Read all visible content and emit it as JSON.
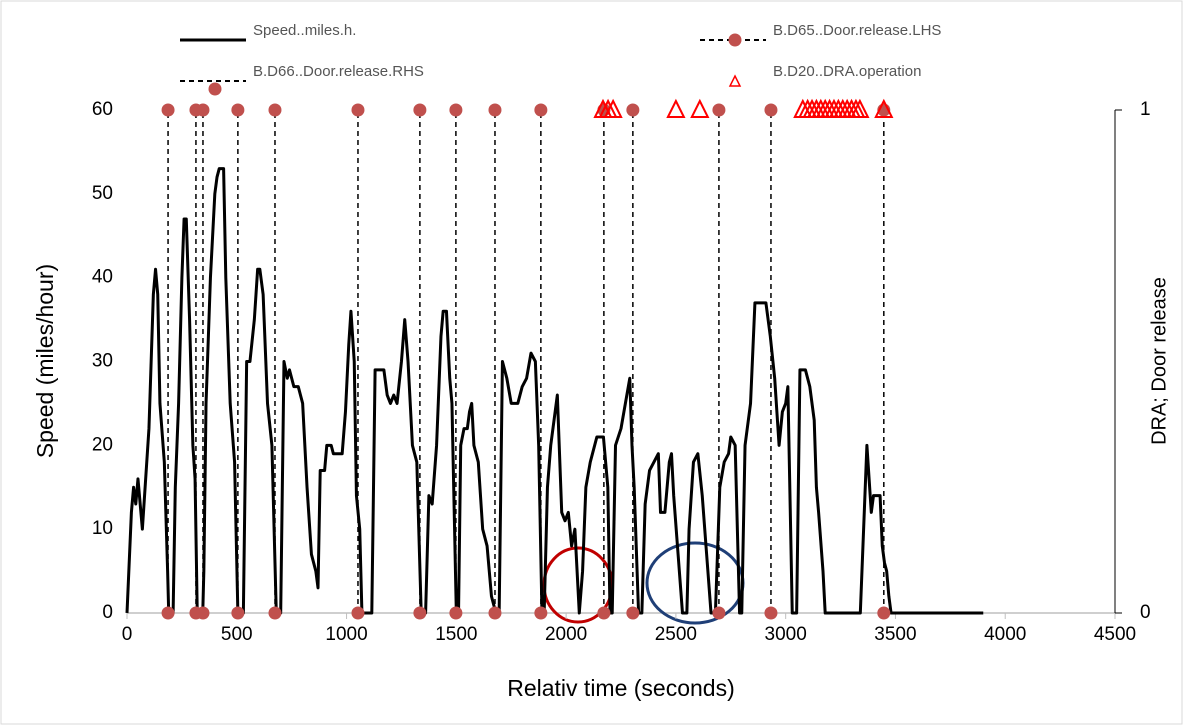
{
  "chart_data": {
    "type": "line",
    "xlabel": "Relativ time (seconds)",
    "ylabel": "Speed (miles/hour)",
    "y2label": "DRA; Door release",
    "xlim": [
      0,
      4500
    ],
    "xticks": [
      0,
      500,
      1000,
      1500,
      2000,
      2500,
      3000,
      3500,
      4000,
      4500
    ],
    "ylim": [
      0,
      60
    ],
    "yticks": [
      0,
      10,
      20,
      30,
      40,
      50,
      60
    ],
    "y2lim": [
      0,
      1
    ],
    "y2ticks": [
      0,
      1
    ],
    "grid": false,
    "series": [
      {
        "name": "Speed..miles.h.",
        "type": "line",
        "color": "#000000",
        "marker": "none",
        "dash": false,
        "x": [
          0,
          20,
          30,
          40,
          50,
          60,
          70,
          80,
          100,
          120,
          130,
          140,
          150,
          170,
          185,
          190,
          210,
          220,
          235,
          250,
          260,
          270,
          285,
          300,
          310,
          320,
          335,
          345,
          350,
          360,
          380,
          400,
          410,
          420,
          440,
          450,
          470,
          490,
          505,
          530,
          545,
          560,
          580,
          595,
          605,
          620,
          640,
          660,
          680,
          700,
          715,
          730,
          740,
          760,
          780,
          800,
          820,
          840,
          860,
          870,
          880,
          900,
          910,
          930,
          940,
          980,
          995,
          1010,
          1020,
          1035,
          1045,
          1060,
          1070,
          1115,
          1130,
          1170,
          1185,
          1200,
          1215,
          1230,
          1250,
          1265,
          1280,
          1300,
          1320,
          1340,
          1360,
          1375,
          1390,
          1410,
          1430,
          1440,
          1455,
          1470,
          1480,
          1500,
          1510,
          1520,
          1535,
          1550,
          1560,
          1570,
          1580,
          1600,
          1620,
          1640,
          1660,
          1680,
          1695,
          1710,
          1730,
          1750,
          1780,
          1800,
          1820,
          1840,
          1860,
          1875,
          1890,
          1900,
          1915,
          1930,
          1950,
          1960,
          1980,
          1995,
          2010,
          2025,
          2040,
          2060,
          2075,
          2090,
          2110,
          2140,
          2170,
          2190,
          2200,
          2210,
          2225,
          2250,
          2270,
          2290,
          2300,
          2310,
          2330,
          2345,
          2360,
          2380,
          2400,
          2420,
          2430,
          2450,
          2470,
          2480,
          2490,
          2510,
          2530,
          2550,
          2560,
          2580,
          2600,
          2620,
          2640,
          2660,
          2680,
          2700,
          2720,
          2740,
          2750,
          2770,
          2790,
          2800,
          2815,
          2840,
          2860,
          2910,
          2930,
          2950,
          2970,
          2985,
          3000,
          3010,
          3030,
          3050,
          3065,
          3090,
          3110,
          3130,
          3140,
          3150,
          3170,
          3180,
          3240,
          3320,
          3340,
          3355,
          3370,
          3380,
          3390,
          3400,
          3430,
          3440,
          3450,
          3460,
          3470,
          3480,
          3900
        ],
        "values": [
          0,
          12,
          15,
          13,
          16,
          13,
          10,
          14,
          22,
          38,
          41,
          38,
          25,
          18,
          5,
          0,
          0,
          15,
          25,
          40,
          47,
          47,
          35,
          20,
          16,
          0,
          0,
          0,
          5,
          25,
          40,
          50,
          52,
          53,
          53,
          40,
          25,
          18,
          0,
          0,
          30,
          30,
          35,
          41,
          41,
          38,
          25,
          20,
          0,
          0,
          30,
          28,
          29,
          27,
          27,
          25,
          15,
          7,
          5,
          3,
          17,
          17,
          20,
          20,
          19,
          19,
          24,
          32,
          36,
          30,
          14,
          10,
          0,
          0,
          29,
          29,
          26,
          25,
          26,
          25,
          30,
          35,
          30,
          20,
          18,
          0,
          0,
          14,
          13,
          20,
          33,
          36,
          36,
          28,
          25,
          0,
          0,
          20,
          22,
          22,
          24,
          25,
          20,
          18,
          10,
          8,
          2,
          0,
          0,
          30,
          28,
          25,
          25,
          27,
          28,
          31,
          30,
          20,
          0,
          0,
          15,
          20,
          24,
          26,
          12,
          11,
          12,
          8,
          10,
          0,
          5,
          15,
          18,
          21,
          21,
          15,
          0,
          0,
          20,
          22,
          25,
          28,
          20,
          15,
          0,
          0,
          13,
          17,
          18,
          19,
          12,
          12,
          18,
          19,
          14,
          7,
          0,
          0,
          10,
          18,
          19,
          14,
          7,
          0,
          0,
          15,
          18,
          19,
          21,
          20,
          0,
          0,
          20,
          25,
          37,
          37,
          33,
          28,
          20,
          24,
          25,
          27,
          0,
          0,
          29,
          29,
          27,
          23,
          15,
          12,
          5,
          0,
          0,
          0,
          0,
          10,
          20,
          16,
          12,
          14,
          14,
          8,
          6,
          5,
          2,
          0,
          0
        ]
      },
      {
        "name": "B.D65..Door.release.LHS",
        "type": "line",
        "axis": "y2",
        "color": "#c0504d",
        "marker": "circle",
        "dash": true,
        "x": [
          187,
          187,
          187,
          314,
          314,
          314,
          346,
          346,
          346,
          505,
          505,
          505,
          674,
          674,
          674,
          1052,
          1052,
          1052,
          1334,
          1334,
          1334,
          1498,
          1498,
          1498,
          1676,
          1676,
          1676,
          1885,
          1885,
          1885,
          2172,
          2172,
          2172,
          2304,
          2304,
          2304,
          2696,
          2696,
          2696,
          2933,
          2933,
          2933,
          3447,
          3447,
          3447
        ],
        "values": [
          0,
          1,
          null,
          0,
          1,
          null,
          0,
          1,
          null,
          0,
          1,
          null,
          0,
          1,
          null,
          0,
          1,
          null,
          0,
          1,
          null,
          0,
          1,
          null,
          0,
          1,
          null,
          0,
          1,
          null,
          0,
          1,
          null,
          0,
          1,
          null,
          0,
          1,
          null,
          0,
          1,
          null,
          0,
          1,
          null
        ]
      },
      {
        "name": "B.D66..Door.release.RHS",
        "type": "line",
        "axis": "y2",
        "color": "#c0504d",
        "marker": "circle",
        "dash": true,
        "x": [],
        "values": []
      },
      {
        "name": "B.D20..DRA.operation",
        "type": "scatter",
        "axis": "y2",
        "color": "#ff0000",
        "marker": "triangle",
        "dash": false,
        "x": [
          2168,
          2191,
          2214,
          2500,
          2609,
          3078,
          3100,
          3120,
          3140,
          3160,
          3180,
          3200,
          3220,
          3240,
          3260,
          3280,
          3300,
          3320,
          3338,
          3447
        ],
        "values": [
          1,
          1,
          1,
          1,
          1,
          1,
          1,
          1,
          1,
          1,
          1,
          1,
          1,
          1,
          1,
          1,
          1,
          1,
          1,
          1
        ]
      }
    ]
  }
}
